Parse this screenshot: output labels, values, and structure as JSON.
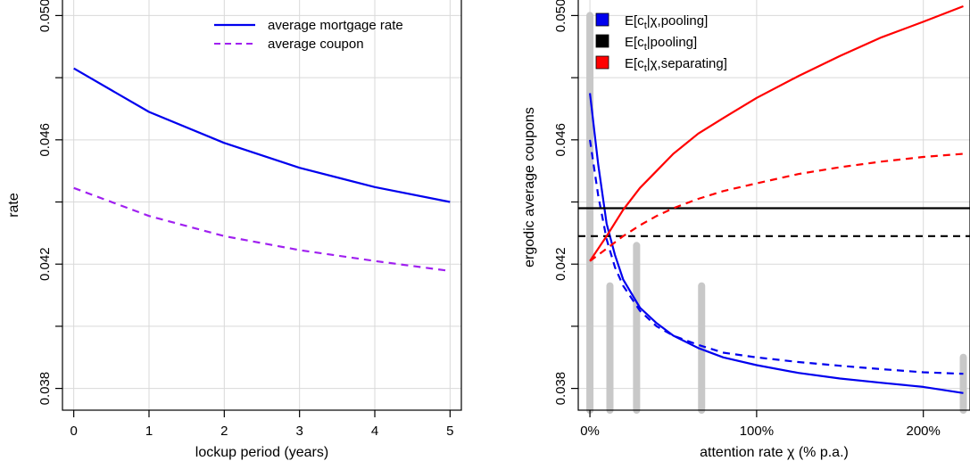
{
  "chart_data": [
    {
      "type": "line",
      "xlabel": "lockup period (years)",
      "ylabel": "rate",
      "xlim": [
        -0.15,
        5.15
      ],
      "ylim": [
        0.0373,
        0.0505
      ],
      "x_ticks": [
        0,
        1,
        2,
        3,
        4,
        5
      ],
      "y_ticks": [
        0.038,
        0.042,
        0.046,
        0.05
      ],
      "y_tick_labels": [
        "0.038",
        "0.042",
        "0.046",
        "0.050"
      ],
      "y_minor_ticks": [
        0.04,
        0.044,
        0.048
      ],
      "grid": true,
      "legend_position": "top-right",
      "series": [
        {
          "name": "average mortgage rate",
          "color": "#0000ee",
          "style": "solid",
          "x": [
            0,
            1,
            2,
            3,
            4,
            5
          ],
          "y": [
            0.0483,
            0.0469,
            0.0459,
            0.0451,
            0.04448,
            0.044
          ]
        },
        {
          "name": "average coupon",
          "color": "#a020f0",
          "style": "dashed",
          "x": [
            0,
            1,
            2,
            3,
            4,
            5
          ],
          "y": [
            0.04445,
            0.04355,
            0.0429,
            0.04245,
            0.0421,
            0.04178
          ]
        }
      ]
    },
    {
      "type": "line",
      "xlabel": "attention rate χ  (% p.a.)",
      "ylabel": "ergodic average coupons",
      "xlim": [
        -0.07,
        2.28
      ],
      "ylim": [
        0.0373,
        0.0505
      ],
      "x_ticks": [
        0,
        1,
        2
      ],
      "x_tick_labels": [
        "0%",
        "100%",
        "200%"
      ],
      "y_ticks": [
        0.038,
        0.042,
        0.046,
        0.05
      ],
      "y_tick_labels": [
        "0.038",
        "0.042",
        "0.046",
        "0.050"
      ],
      "y_minor_ticks": [
        0.04,
        0.044,
        0.048
      ],
      "grid": true,
      "legend_position": "top-left",
      "legend": [
        {
          "label": "E[c",
          "sub": "t",
          "rest": "|χ,pooling]",
          "color": "#0000ee"
        },
        {
          "label": "E[c",
          "sub": "t",
          "rest": "|pooling]",
          "color": "#000000"
        },
        {
          "label": "E[c",
          "sub": "t",
          "rest": "|χ,separating]",
          "color": "#ff0000"
        }
      ],
      "histogram": {
        "color": "#c8c8c8",
        "x": [
          0.0,
          0.12,
          0.28,
          0.67,
          2.24
        ],
        "heights": [
          0.05,
          0.0413,
          0.0426,
          0.0413,
          0.039
        ]
      },
      "series": [
        {
          "name": "E[ct|χ,pooling] (solid)",
          "color": "#0000ee",
          "style": "solid",
          "x": [
            0.0,
            0.05,
            0.1,
            0.15,
            0.2,
            0.3,
            0.4,
            0.5,
            0.65,
            0.8,
            1.0,
            1.25,
            1.5,
            1.75,
            2.0,
            2.24
          ],
          "y": [
            0.0475,
            0.0452,
            0.0433,
            0.0423,
            0.0415,
            0.0406,
            0.0401,
            0.0397,
            0.0393,
            0.039,
            0.03875,
            0.0385,
            0.03832,
            0.03818,
            0.03805,
            0.03785
          ]
        },
        {
          "name": "E[ct|χ,pooling] (dashed)",
          "color": "#0000ee",
          "style": "dashed",
          "x": [
            0.0,
            0.05,
            0.1,
            0.15,
            0.2,
            0.3,
            0.4,
            0.5,
            0.65,
            0.8,
            1.0,
            1.25,
            1.5,
            1.75,
            2.0,
            2.24
          ],
          "y": [
            0.046,
            0.0442,
            0.0428,
            0.0419,
            0.0413,
            0.0405,
            0.04,
            0.0397,
            0.0394,
            0.03915,
            0.039,
            0.03885,
            0.03873,
            0.03862,
            0.03852,
            0.03847
          ]
        },
        {
          "name": "E[ct|pooling] (solid)",
          "color": "#000000",
          "style": "solid",
          "x": [
            -0.07,
            2.28
          ],
          "y": [
            0.0438,
            0.0438
          ]
        },
        {
          "name": "E[ct|pooling] (dashed)",
          "color": "#000000",
          "style": "dashed",
          "x": [
            -0.07,
            2.28
          ],
          "y": [
            0.0429,
            0.0429
          ]
        },
        {
          "name": "E[ct|χ,separating] (solid)",
          "color": "#ff0000",
          "style": "solid",
          "x": [
            0.0,
            0.05,
            0.1,
            0.2,
            0.3,
            0.4,
            0.5,
            0.65,
            0.8,
            1.0,
            1.25,
            1.5,
            1.75,
            2.0,
            2.24
          ],
          "y": [
            0.0421,
            0.0425,
            0.0429,
            0.04375,
            0.04445,
            0.045,
            0.04555,
            0.0462,
            0.0467,
            0.04735,
            0.04805,
            0.0487,
            0.0493,
            0.0498,
            0.0503
          ]
        },
        {
          "name": "E[ct|χ,separating] (dashed)",
          "color": "#ff0000",
          "style": "dashed",
          "x": [
            0.0,
            0.05,
            0.1,
            0.2,
            0.3,
            0.4,
            0.5,
            0.65,
            0.8,
            1.0,
            1.25,
            1.5,
            1.75,
            2.0,
            2.24
          ],
          "y": [
            0.0421,
            0.0423,
            0.0425,
            0.0429,
            0.04325,
            0.04355,
            0.0438,
            0.0441,
            0.04435,
            0.0446,
            0.0449,
            0.04512,
            0.0453,
            0.04545,
            0.04555
          ]
        }
      ]
    }
  ]
}
